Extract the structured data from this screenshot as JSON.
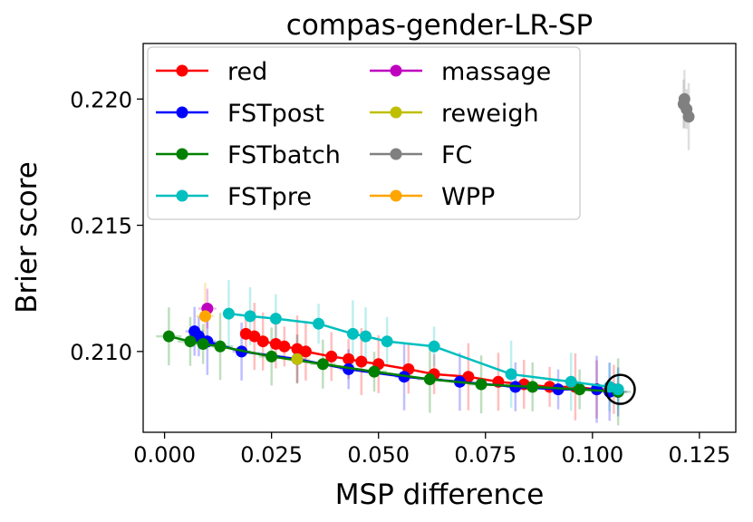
{
  "chart_data": {
    "type": "line",
    "title": "compas-gender-LR-SP",
    "xlabel": "MSP difference",
    "ylabel": "Brier score",
    "xlim": [
      -0.005,
      0.1335
    ],
    "ylim": [
      0.2068,
      0.2222
    ],
    "xticks": [
      0.0,
      0.025,
      0.05,
      0.075,
      0.1,
      0.125
    ],
    "xtick_labels": [
      "0.000",
      "0.025",
      "0.050",
      "0.075",
      "0.100",
      "0.125"
    ],
    "yticks": [
      0.21,
      0.215,
      0.22
    ],
    "ytick_labels": [
      "0.210",
      "0.215",
      "0.220"
    ],
    "grid": false,
    "legend": {
      "position": "top-left",
      "columns": 2
    },
    "highlight_point": {
      "x": 0.1065,
      "y": 0.2085,
      "marker": "open-circle"
    },
    "series": [
      {
        "name": "red",
        "color": "#ff0000",
        "x": [
          0.019,
          0.021,
          0.023,
          0.026,
          0.028,
          0.031,
          0.033,
          0.039,
          0.043,
          0.046,
          0.05,
          0.057,
          0.063,
          0.071,
          0.078,
          0.084,
          0.09,
          0.096,
          0.101,
          0.105
        ],
        "y": [
          0.2107,
          0.2106,
          0.2104,
          0.2103,
          0.2102,
          0.2101,
          0.21,
          0.2098,
          0.2097,
          0.2096,
          0.2095,
          0.2093,
          0.2091,
          0.209,
          0.2088,
          0.2087,
          0.2086,
          0.2086,
          0.2085,
          0.2085
        ]
      },
      {
        "name": "FSTpost",
        "color": "#0000ff",
        "x": [
          0.007,
          0.008,
          0.01,
          0.018,
          0.031,
          0.043,
          0.056,
          0.069,
          0.082,
          0.092,
          0.101,
          0.104,
          0.106
        ],
        "y": [
          0.2108,
          0.2106,
          0.2104,
          0.21,
          0.2097,
          0.2093,
          0.209,
          0.2088,
          0.2086,
          0.2085,
          0.2085,
          0.2084,
          0.2084
        ]
      },
      {
        "name": "FSTbatch",
        "color": "#008000",
        "x": [
          0.001,
          0.006,
          0.009,
          0.013,
          0.025,
          0.037,
          0.049,
          0.062,
          0.074,
          0.086,
          0.097,
          0.106
        ],
        "y": [
          0.2106,
          0.2104,
          0.2103,
          0.2102,
          0.2098,
          0.2095,
          0.2092,
          0.2089,
          0.2087,
          0.2086,
          0.2085,
          0.2084
        ]
      },
      {
        "name": "FSTpre",
        "color": "#00bfbf",
        "x": [
          0.015,
          0.02,
          0.026,
          0.036,
          0.044,
          0.047,
          0.052,
          0.063,
          0.081,
          0.095,
          0.104,
          0.106
        ],
        "y": [
          0.2115,
          0.2114,
          0.2113,
          0.2111,
          0.2107,
          0.2106,
          0.2104,
          0.2102,
          0.2091,
          0.2088,
          0.2086,
          0.2085
        ]
      },
      {
        "name": "massage",
        "color": "#bf00bf",
        "x": [
          0.01
        ],
        "y": [
          0.2117
        ]
      },
      {
        "name": "reweigh",
        "color": "#bfbf00",
        "x": [
          0.031
        ],
        "y": [
          0.2097
        ]
      },
      {
        "name": "FC",
        "color": "#808080",
        "x": [
          0.1215,
          0.1213,
          0.122,
          0.1225
        ],
        "y": [
          0.22,
          0.2198,
          0.2196,
          0.2193
        ]
      },
      {
        "name": "WPP",
        "color": "#ffa500",
        "x": [
          0.0095
        ],
        "y": [
          0.2114
        ]
      }
    ]
  }
}
